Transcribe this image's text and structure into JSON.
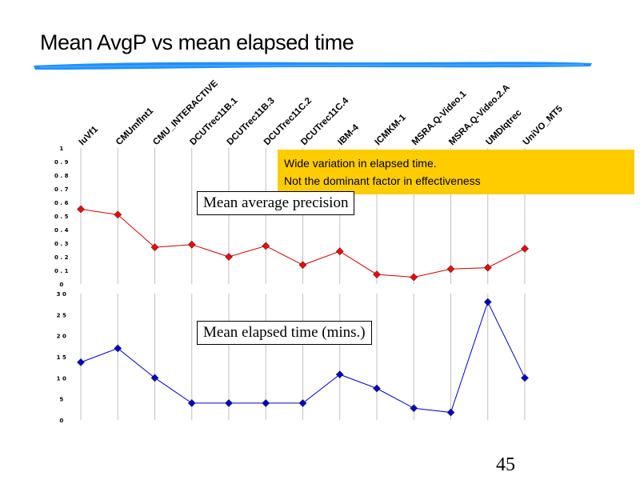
{
  "slide": {
    "title": "Mean AvgP vs mean elapsed time",
    "number": "45",
    "accent_color": "#1e90ff"
  },
  "callout": {
    "line1": "Wide variation in elapsed time.",
    "line2": "Not the dominant factor in effectiveness",
    "background": "#ffcc00"
  },
  "chart_data": [
    {
      "type": "line",
      "title": "Mean average precision",
      "categories": [
        "IuVf1",
        "CMUmfInt1",
        "CMU_INTERACTIVE",
        "DCUTrec11B.1",
        "DCUTrec11B.3",
        "DCUTrec11C.2",
        "DCUTrec11C.4",
        "IBM-4",
        "ICMKM-1",
        "MSRA.Q-Video.1",
        "MSRA.Q-Video.2.A",
        "UMDIqtrec",
        "UniVO_MT5"
      ],
      "series": [
        {
          "values": [
            0.55,
            0.51,
            0.27,
            0.29,
            0.2,
            0.28,
            0.14,
            0.24,
            0.07,
            0.05,
            0.11,
            0.12,
            0.26
          ],
          "color": "#ff0000",
          "line_color": "#cc0000"
        }
      ],
      "ylim": [
        0,
        1
      ],
      "yticks": [
        "0",
        "0.1",
        "0.2",
        "0.3",
        "0.4",
        "0.5",
        "0.6",
        "0.7",
        "0.8",
        "0.9",
        "1"
      ],
      "grid": "vertical"
    },
    {
      "type": "line",
      "title": "Mean elapsed time (mins.)",
      "categories": [
        "IuVf1",
        "CMUmfInt1",
        "CMU_INTERACTIVE",
        "DCUTrec11B.1",
        "DCUTrec11B.3",
        "DCUTrec11C.2",
        "DCUTrec11C.4",
        "IBM-4",
        "ICMKM-1",
        "MSRA.Q-Video.1",
        "MSRA.Q-Video.2.A",
        "UMDIqtrec",
        "UniVO_MT5"
      ],
      "series": [
        {
          "values": [
            13.7,
            17,
            10,
            4,
            4,
            4,
            4,
            10.8,
            7.5,
            2.8,
            1.8,
            28,
            10
          ],
          "color": "#0000cc",
          "line_color": "#0000cc"
        }
      ],
      "ylim": [
        0,
        30
      ],
      "yticks": [
        "0",
        "5",
        "10",
        "15",
        "20",
        "25",
        "30"
      ],
      "grid": "vertical"
    }
  ]
}
